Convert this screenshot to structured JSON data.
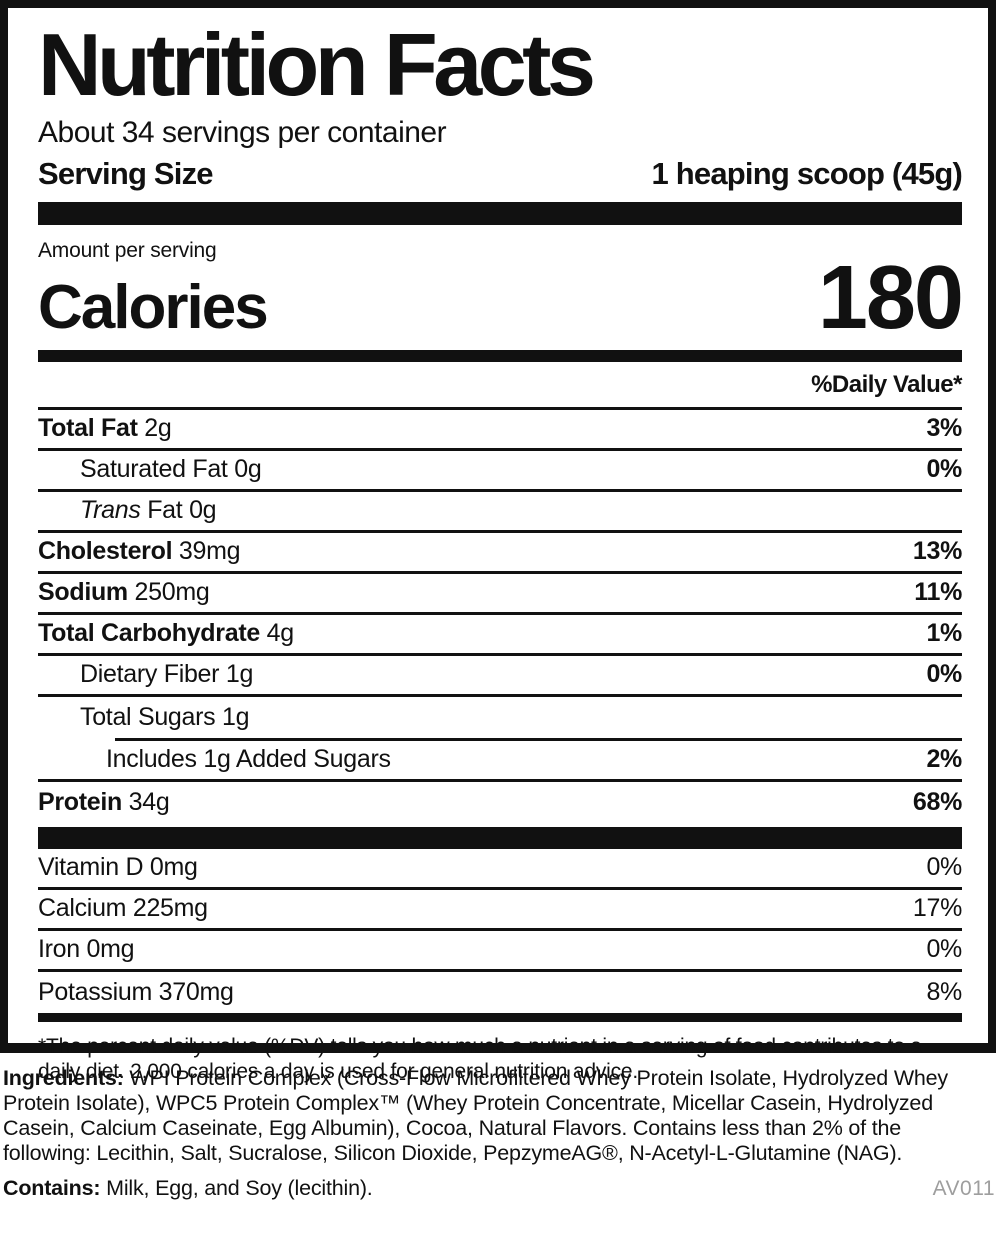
{
  "label": {
    "title": "Nutrition Facts",
    "servings_per_container": "About 34 servings per container",
    "serving_size": {
      "label": "Serving Size",
      "value": "1 heaping scoop (45g)"
    },
    "amount_per_serving": "Amount per serving",
    "calories": {
      "label": "Calories",
      "value": "180"
    },
    "daily_value_header": "%Daily Value*",
    "nutrients": [
      {
        "bold": "Total Fat",
        "italic": "",
        "text": " 2g",
        "percent": "3%"
      },
      {
        "bold": "",
        "italic": "",
        "text": "Saturated Fat 0g",
        "percent": "0%"
      },
      {
        "bold": "",
        "italic": "Trans",
        "text": " Fat 0g",
        "percent": ""
      },
      {
        "bold": "Cholesterol",
        "italic": "",
        "text": " 39mg",
        "percent": "13%"
      },
      {
        "bold": "Sodium",
        "italic": "",
        "text": " 250mg",
        "percent": "11%"
      },
      {
        "bold": "Total Carbohydrate",
        "italic": "",
        "text": " 4g",
        "percent": "1%"
      },
      {
        "bold": "",
        "italic": "",
        "text": "Dietary Fiber 1g",
        "percent": "0%"
      },
      {
        "bold": "",
        "italic": "",
        "text": "Total Sugars 1g",
        "percent": ""
      },
      {
        "bold": "",
        "italic": "",
        "text": "Includes 1g Added Sugars",
        "percent": "2%"
      },
      {
        "bold": "Protein",
        "italic": "",
        "text": " 34g",
        "percent": "68%"
      }
    ],
    "micronutrients": [
      {
        "text": "Vitamin D 0mg",
        "percent": "0%"
      },
      {
        "text": "Calcium 225mg",
        "percent": "17%"
      },
      {
        "text": "Iron 0mg",
        "percent": "0%"
      },
      {
        "text": "Potassium 370mg",
        "percent": "8%"
      }
    ],
    "footnote": "*The percent daily value (%DV) tells you how much a nutrient in a serving of food contributes to a daily diet. 2,000 calories a day is used for general nutrition advice."
  },
  "ingredients": {
    "label": "Ingredients:",
    "text": " WPI Protein Complex (Cross-Flow Microfiltered Whey Protein Isolate, Hydrolyzed Whey Protein Isolate), WPC5 Protein Complex™ (Whey Protein Concentrate, Micellar Casein, Hydrolyzed Casein, Calcium Caseinate, Egg Albumin), Cocoa, Natural Flavors. Contains less than 2% of the following: Lecithin, Salt, Sucralose, Silicon Dioxide, PepzymeAG®, N-Acetyl-L-Glutamine (NAG)."
  },
  "contains": {
    "label": "Contains:",
    "text": " Milk, Egg, and Soy (lecithin)."
  },
  "product_code": "AV011",
  "colors": {
    "ink": "#111111",
    "muted_code": "#9e9e9e",
    "background": "#ffffff"
  }
}
